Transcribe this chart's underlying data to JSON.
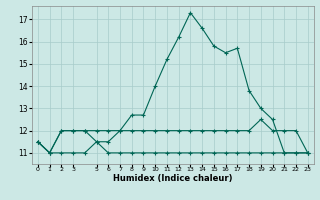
{
  "xlabel": "Humidex (Indice chaleur)",
  "bg_color": "#cce8e5",
  "grid_color": "#a8ccca",
  "line_color": "#006655",
  "ylim": [
    10.5,
    17.6
  ],
  "xlim": [
    -0.5,
    23.5
  ],
  "yticks": [
    11,
    12,
    13,
    14,
    15,
    16,
    17
  ],
  "x_tick_positions": [
    0,
    1,
    2,
    3,
    5,
    6,
    7,
    8,
    9,
    10,
    11,
    12,
    13,
    14,
    15,
    16,
    17,
    18,
    19,
    20,
    21,
    22,
    23
  ],
  "series1_x": [
    0,
    1,
    2,
    3,
    4,
    5,
    6,
    7,
    8,
    9,
    10,
    11,
    12,
    13,
    14,
    15,
    16,
    17,
    18,
    19,
    20,
    21,
    22,
    23
  ],
  "series1_y": [
    11.5,
    11.0,
    12.0,
    12.0,
    12.0,
    12.0,
    12.0,
    12.0,
    12.0,
    12.0,
    12.0,
    12.0,
    12.0,
    12.0,
    12.0,
    12.0,
    12.0,
    12.0,
    12.0,
    12.5,
    12.0,
    12.0,
    12.0,
    11.0
  ],
  "series2_x": [
    0,
    1,
    2,
    3,
    4,
    5,
    6,
    7,
    8,
    9,
    10,
    11,
    12,
    13,
    14,
    15,
    16,
    17,
    18,
    19,
    20,
    21,
    22,
    23
  ],
  "series2_y": [
    11.5,
    11.0,
    11.0,
    11.0,
    11.0,
    11.5,
    11.0,
    11.0,
    11.0,
    11.0,
    11.0,
    11.0,
    11.0,
    11.0,
    11.0,
    11.0,
    11.0,
    11.0,
    11.0,
    11.0,
    11.0,
    11.0,
    11.0,
    11.0
  ],
  "series3_x": [
    0,
    1,
    2,
    3,
    4,
    5,
    6,
    7,
    8,
    9,
    10,
    11,
    12,
    13,
    14,
    15,
    16,
    17,
    18,
    19,
    20,
    21,
    22,
    23
  ],
  "series3_y": [
    11.5,
    11.0,
    12.0,
    12.0,
    12.0,
    11.5,
    11.5,
    12.0,
    12.7,
    12.7,
    14.0,
    15.2,
    16.2,
    17.3,
    16.6,
    15.8,
    15.5,
    15.7,
    13.8,
    13.0,
    12.5,
    11.0,
    11.0,
    11.0
  ]
}
